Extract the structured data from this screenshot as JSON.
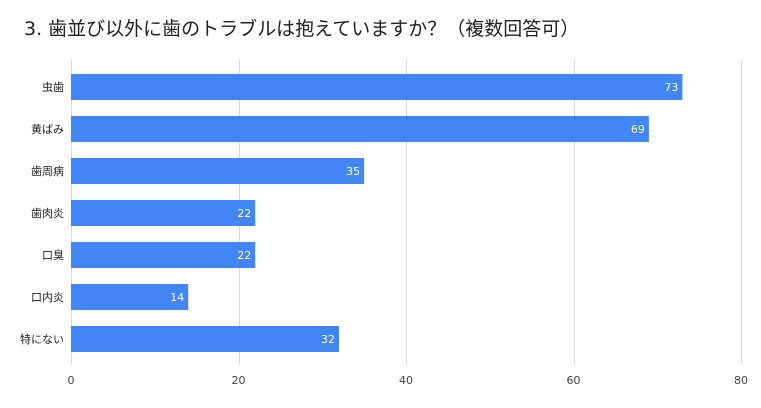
{
  "chart_data": {
    "type": "bar",
    "orientation": "horizontal",
    "title": "3. 歯並び以外に歯のトラブルは抱えていますか？（複数回答可）",
    "categories": [
      "虫歯",
      "黄ばみ",
      "歯周病",
      "歯肉炎",
      "口臭",
      "口内炎",
      "特にない"
    ],
    "values": [
      73,
      69,
      35,
      22,
      22,
      14,
      32
    ],
    "xlim": [
      0,
      80
    ],
    "xticks": [
      0,
      20,
      40,
      60,
      80
    ],
    "xlabel": "",
    "ylabel": "",
    "grid": true,
    "data_labels": true,
    "colors": {
      "bar": "#4285f4",
      "grid": "#d9d9d9"
    }
  }
}
